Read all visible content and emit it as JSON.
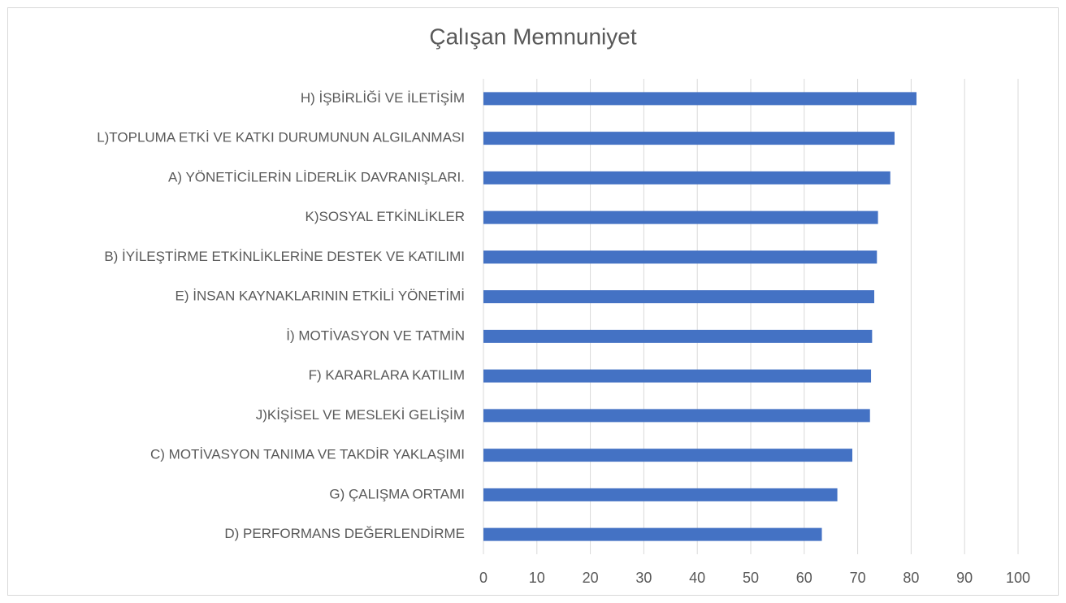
{
  "chart_data": {
    "type": "barh",
    "title": "Çalışan Memnuniyet",
    "categories": [
      "H) İŞBİRLİĞİ VE İLETİŞİM",
      "L)TOPLUMA ETKİ VE KATKI DURUMUNUN ALGILANMASI",
      "A) YÖNETİCİLERİN LİDERLİK DAVRANIŞLARI.",
      "K)SOSYAL ETKİNLİKLER",
      "B) İYİLEŞTİRME ETKİNLİKLERİNE DESTEK VE KATILIMI",
      "E) İNSAN KAYNAKLARININ ETKİLİ YÖNETİMİ",
      "İ) MOTİVASYON VE TATMİN",
      "F) KARARLARA KATILIM",
      "J)KİŞİSEL VE MESLEKİ GELİŞİM",
      "C) MOTİVASYON TANIMA VE TAKDİR YAKLAŞIMI",
      "G) ÇALIŞMA ORTAMI",
      "D) PERFORMANS DEĞERLENDİRME"
    ],
    "values": [
      81,
      76.9,
      76.1,
      73.8,
      73.6,
      73.1,
      72.7,
      72.5,
      72.3,
      69,
      66.2,
      63.3
    ],
    "color": "#4472c4",
    "xlim": [
      0,
      100
    ],
    "xticks": [
      0,
      10,
      20,
      30,
      40,
      50,
      60,
      70,
      80,
      90,
      100
    ],
    "grid": true
  }
}
